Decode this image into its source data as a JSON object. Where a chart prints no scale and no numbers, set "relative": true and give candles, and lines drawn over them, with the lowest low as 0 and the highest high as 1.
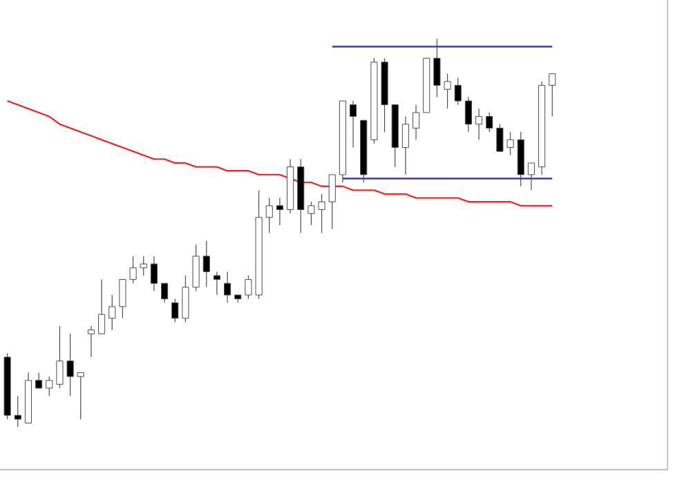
{
  "chart_data": {
    "type": "candlestick",
    "relative": true,
    "categories": [
      null,
      null,
      null,
      null,
      null,
      null,
      null,
      null,
      null,
      null,
      null,
      null,
      null,
      null,
      null,
      null,
      null,
      null,
      null,
      null,
      null,
      null,
      null,
      null,
      null,
      null,
      null,
      null,
      null,
      null,
      null,
      null,
      null,
      null,
      null,
      null,
      null,
      null,
      null,
      null,
      null,
      null,
      null,
      null,
      null,
      null,
      null,
      null,
      null,
      null,
      null,
      null,
      null
    ],
    "ohlc": [
      [
        0.18,
        0.19,
        0.02,
        0.03
      ],
      [
        0.03,
        0.08,
        0.0,
        0.02
      ],
      [
        0.01,
        0.14,
        0.01,
        0.12
      ],
      [
        0.12,
        0.14,
        0.1,
        0.1
      ],
      [
        0.1,
        0.13,
        0.08,
        0.12
      ],
      [
        0.11,
        0.26,
        0.1,
        0.17
      ],
      [
        0.17,
        0.24,
        0.08,
        0.13
      ],
      [
        0.13,
        0.14,
        0.02,
        0.14
      ],
      [
        0.24,
        0.26,
        0.18,
        0.25
      ],
      [
        0.24,
        0.38,
        0.24,
        0.29
      ],
      [
        0.28,
        0.34,
        0.25,
        0.31
      ],
      [
        0.31,
        0.38,
        0.28,
        0.38
      ],
      [
        0.38,
        0.44,
        0.37,
        0.41
      ],
      [
        0.41,
        0.44,
        0.39,
        0.42
      ],
      [
        0.42,
        0.44,
        0.35,
        0.37
      ],
      [
        0.37,
        0.37,
        0.32,
        0.33
      ],
      [
        0.32,
        0.33,
        0.27,
        0.28
      ],
      [
        0.28,
        0.39,
        0.27,
        0.36
      ],
      [
        0.36,
        0.47,
        0.35,
        0.44
      ],
      [
        0.44,
        0.48,
        0.36,
        0.4
      ],
      [
        0.39,
        0.4,
        0.34,
        0.38
      ],
      [
        0.37,
        0.4,
        0.32,
        0.34
      ],
      [
        0.34,
        0.34,
        0.32,
        0.33
      ],
      [
        0.34,
        0.39,
        0.33,
        0.38
      ],
      [
        0.34,
        0.61,
        0.33,
        0.54
      ],
      [
        0.54,
        0.59,
        0.5,
        0.57
      ],
      [
        0.57,
        0.59,
        0.52,
        0.56
      ],
      [
        0.56,
        0.69,
        0.55,
        0.67
      ],
      [
        0.67,
        0.69,
        0.5,
        0.56
      ],
      [
        0.55,
        0.58,
        0.52,
        0.57
      ],
      [
        0.56,
        0.6,
        0.5,
        0.58
      ],
      [
        0.58,
        0.65,
        0.51,
        0.65
      ],
      [
        0.65,
        0.84,
        0.63,
        0.84
      ],
      [
        0.83,
        0.84,
        0.72,
        0.8
      ],
      [
        0.79,
        0.79,
        0.63,
        0.65
      ],
      [
        0.74,
        0.95,
        0.73,
        0.94
      ],
      [
        0.94,
        0.95,
        0.76,
        0.83
      ],
      [
        0.83,
        0.83,
        0.67,
        0.72
      ],
      [
        0.72,
        0.8,
        0.65,
        0.78
      ],
      [
        0.77,
        0.83,
        0.74,
        0.81
      ],
      [
        0.81,
        0.95,
        0.81,
        0.95
      ],
      [
        0.95,
        1.0,
        0.85,
        0.88
      ],
      [
        0.87,
        0.91,
        0.82,
        0.89
      ],
      [
        0.88,
        0.9,
        0.83,
        0.84
      ],
      [
        0.84,
        0.85,
        0.76,
        0.78
      ],
      [
        0.78,
        0.82,
        0.74,
        0.8
      ],
      [
        0.8,
        0.81,
        0.76,
        0.77
      ],
      [
        0.77,
        0.78,
        0.71,
        0.71
      ],
      [
        0.72,
        0.76,
        0.7,
        0.74
      ],
      [
        0.74,
        0.76,
        0.62,
        0.65
      ],
      [
        0.65,
        0.68,
        0.61,
        0.68
      ],
      [
        0.67,
        0.89,
        0.65,
        0.88
      ],
      [
        0.88,
        0.91,
        0.8,
        0.91
      ]
    ],
    "series": [
      {
        "type": "line",
        "color": "#e0302f",
        "values": [
          0.84,
          0.83,
          0.82,
          0.81,
          0.8,
          0.78,
          0.77,
          0.76,
          0.75,
          0.74,
          0.73,
          0.72,
          0.71,
          0.7,
          0.69,
          0.69,
          0.68,
          0.68,
          0.67,
          0.67,
          0.67,
          0.66,
          0.66,
          0.66,
          0.65,
          0.65,
          0.65,
          0.64,
          0.63,
          0.63,
          0.62,
          0.62,
          0.62,
          0.61,
          0.61,
          0.61,
          0.6,
          0.6,
          0.6,
          0.59,
          0.59,
          0.59,
          0.59,
          0.59,
          0.58,
          0.58,
          0.58,
          0.58,
          0.58,
          0.57,
          0.57,
          0.57,
          0.57
        ]
      },
      {
        "type": "line",
        "color": "#3a3aa8",
        "values": [
          null,
          null,
          null,
          null,
          null,
          null,
          null,
          null,
          null,
          null,
          null,
          null,
          null,
          null,
          null,
          null,
          null,
          null,
          null,
          null,
          null,
          null,
          null,
          null,
          null,
          null,
          null,
          null,
          null,
          null,
          null,
          0.98,
          0.98,
          0.98,
          0.98,
          0.98,
          0.98,
          0.98,
          0.98,
          0.98,
          0.98,
          0.98,
          0.98,
          0.98,
          0.98,
          0.98,
          0.98,
          0.98,
          0.98,
          0.98,
          0.98,
          0.98,
          0.98
        ]
      },
      {
        "type": "line",
        "color": "#3a3aa8",
        "values": [
          null,
          null,
          null,
          null,
          null,
          null,
          null,
          null,
          null,
          null,
          null,
          null,
          null,
          null,
          null,
          null,
          null,
          null,
          null,
          null,
          null,
          null,
          null,
          null,
          null,
          null,
          null,
          null,
          null,
          null,
          null,
          null,
          0.64,
          0.64,
          0.64,
          0.64,
          0.64,
          0.64,
          0.64,
          0.64,
          0.64,
          0.64,
          0.64,
          0.64,
          0.64,
          0.64,
          0.64,
          0.64,
          0.64,
          0.64,
          0.64,
          0.64,
          0.64
        ]
      }
    ]
  }
}
